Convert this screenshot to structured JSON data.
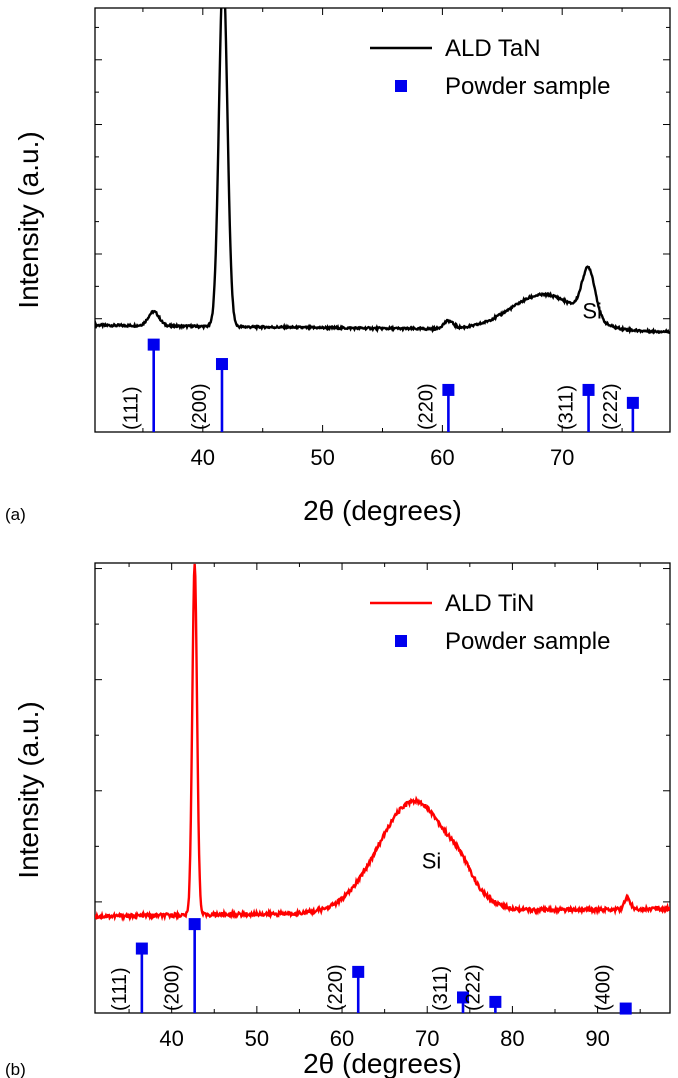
{
  "chart_data": [
    {
      "panel_label": "(a)",
      "type": "line",
      "xlabel": "2θ (degrees)",
      "ylabel": "Intensity (a.u.)",
      "xlim": [
        31,
        79
      ],
      "x_ticks": [
        40,
        50,
        60,
        70
      ],
      "y_unit_ticks": [
        0,
        1,
        2,
        3,
        4
      ],
      "ylim": [
        -1.75,
        4.8
      ],
      "colors": {
        "line": "#000000",
        "powder": "#0000ee"
      },
      "legend": [
        {
          "label": "ALD TaN",
          "marker": "line"
        },
        {
          "label": "Powder sample",
          "marker": "square"
        }
      ],
      "series": [
        {
          "name": "ALD TaN",
          "peaks": [
            {
              "x": 35.9,
              "height": 0.22,
              "width": 0.45
            },
            {
              "x": 41.7,
              "height": 5.5,
              "width": 0.35
            },
            {
              "x": 60.5,
              "height": 0.12,
              "width": 0.4
            },
            {
              "x": 72.2,
              "height": 0.75,
              "width": 0.55
            },
            {
              "x": 68.5,
              "height": 0.55,
              "width": 2.8
            }
          ],
          "baseline_start": -0.1,
          "baseline_end": -0.2
        }
      ],
      "reference": {
        "name": "Powder sample",
        "points": [
          {
            "x": 35.9,
            "y": -0.4,
            "hkl": "(111)"
          },
          {
            "x": 41.6,
            "y": -0.7,
            "hkl": "(200)"
          },
          {
            "x": 60.5,
            "y": -1.1,
            "hkl": "(220)"
          },
          {
            "x": 72.2,
            "y": -1.1,
            "hkl": "(311)"
          },
          {
            "x": 75.9,
            "y": -1.3,
            "hkl": "(222)"
          }
        ]
      },
      "annotations": [
        {
          "text": "Si",
          "x": 72.5,
          "y": 0.0
        }
      ]
    },
    {
      "panel_label": "(b)",
      "type": "line",
      "xlabel": "2θ (degrees)",
      "ylabel": "Intensity (a.u.)",
      "xlim": [
        31,
        98.5
      ],
      "x_ticks": [
        40,
        50,
        60,
        70,
        80,
        90
      ],
      "y_unit_ticks": [
        0,
        1,
        2,
        3
      ],
      "ylim": [
        -1.0,
        3.05
      ],
      "colors": {
        "line": "#ff0000",
        "powder": "#0000ee"
      },
      "legend": [
        {
          "label": "ALD TiN",
          "marker": "line"
        },
        {
          "label": "Powder sample",
          "marker": "square"
        }
      ],
      "series": [
        {
          "name": "ALD TiN",
          "peaks": [
            {
              "x": 42.7,
              "height": 3.15,
              "width": 0.28
            },
            {
              "x": 68.5,
              "height": 1.0,
              "width": 4.2
            },
            {
              "x": 74.0,
              "height": 0.1,
              "width": 1.2
            },
            {
              "x": 93.5,
              "height": 0.1,
              "width": 0.35
            }
          ],
          "baseline_start": -0.13,
          "baseline_end": -0.06
        }
      ],
      "reference": {
        "name": "Powder sample",
        "points": [
          {
            "x": 36.5,
            "y": -0.42,
            "hkl": "(111)"
          },
          {
            "x": 42.7,
            "y": -0.2,
            "hkl": "(200)"
          },
          {
            "x": 61.9,
            "y": -0.63,
            "hkl": "(220)"
          },
          {
            "x": 74.2,
            "y": -0.86,
            "hkl": "(311)"
          },
          {
            "x": 78.0,
            "y": -0.9,
            "hkl": "(222)"
          },
          {
            "x": 93.3,
            "y": -0.96,
            "hkl": "(400)"
          }
        ]
      },
      "annotations": [
        {
          "text": "Si",
          "x": 70.5,
          "y": 0.3
        }
      ]
    }
  ]
}
